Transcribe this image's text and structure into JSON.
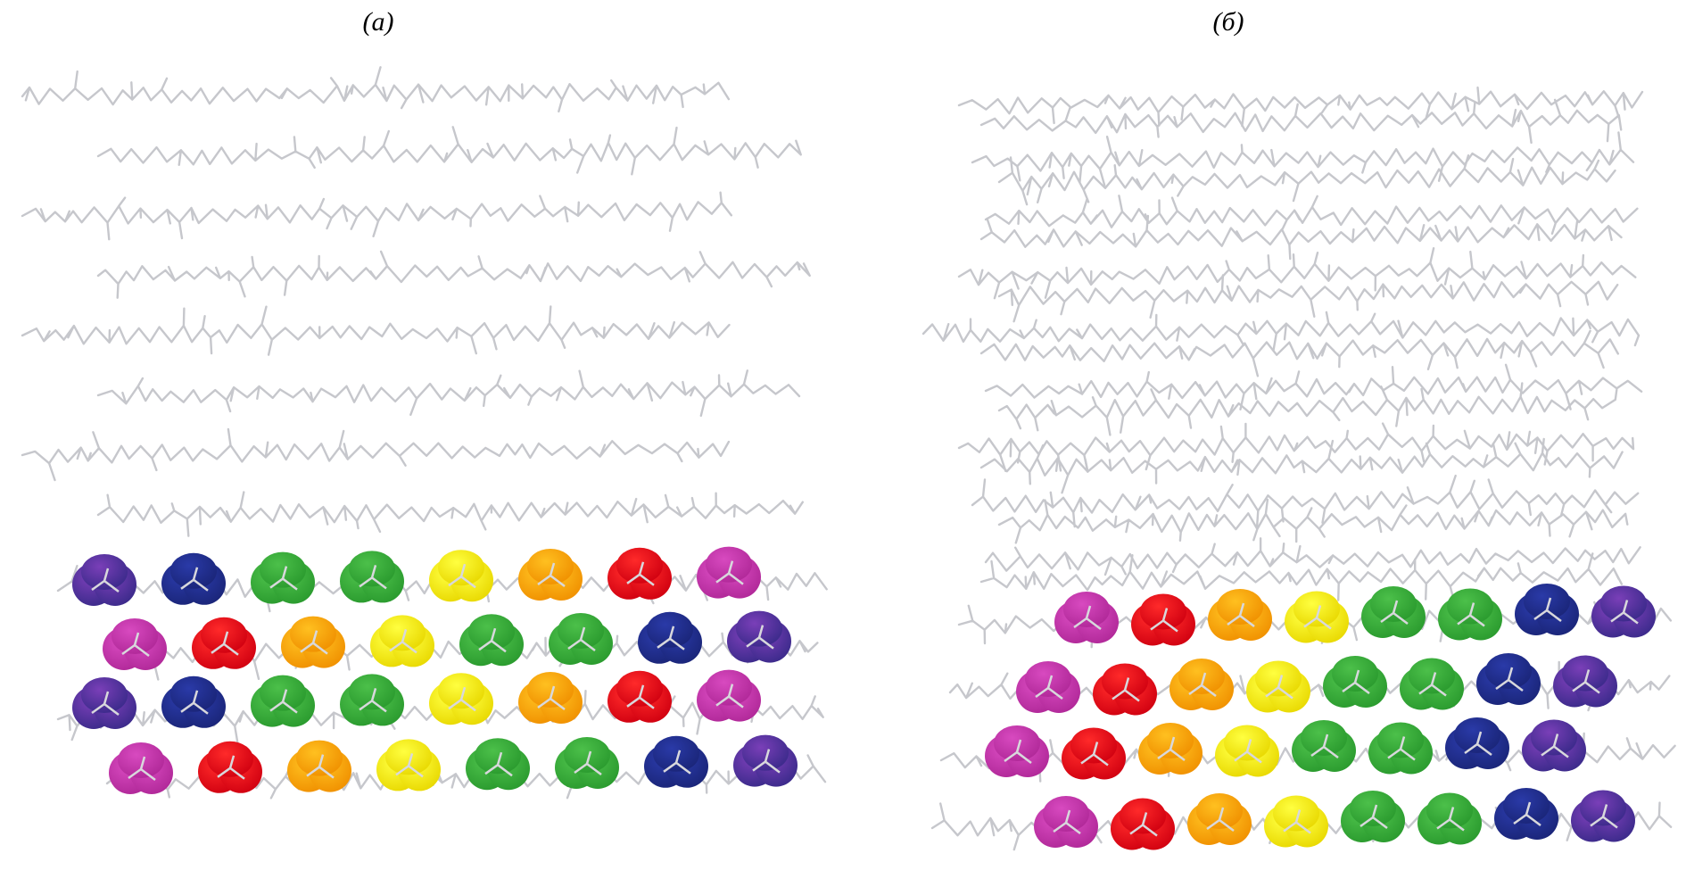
{
  "panels": [
    {
      "label": "(а)"
    },
    {
      "label": "(б)"
    }
  ]
}
